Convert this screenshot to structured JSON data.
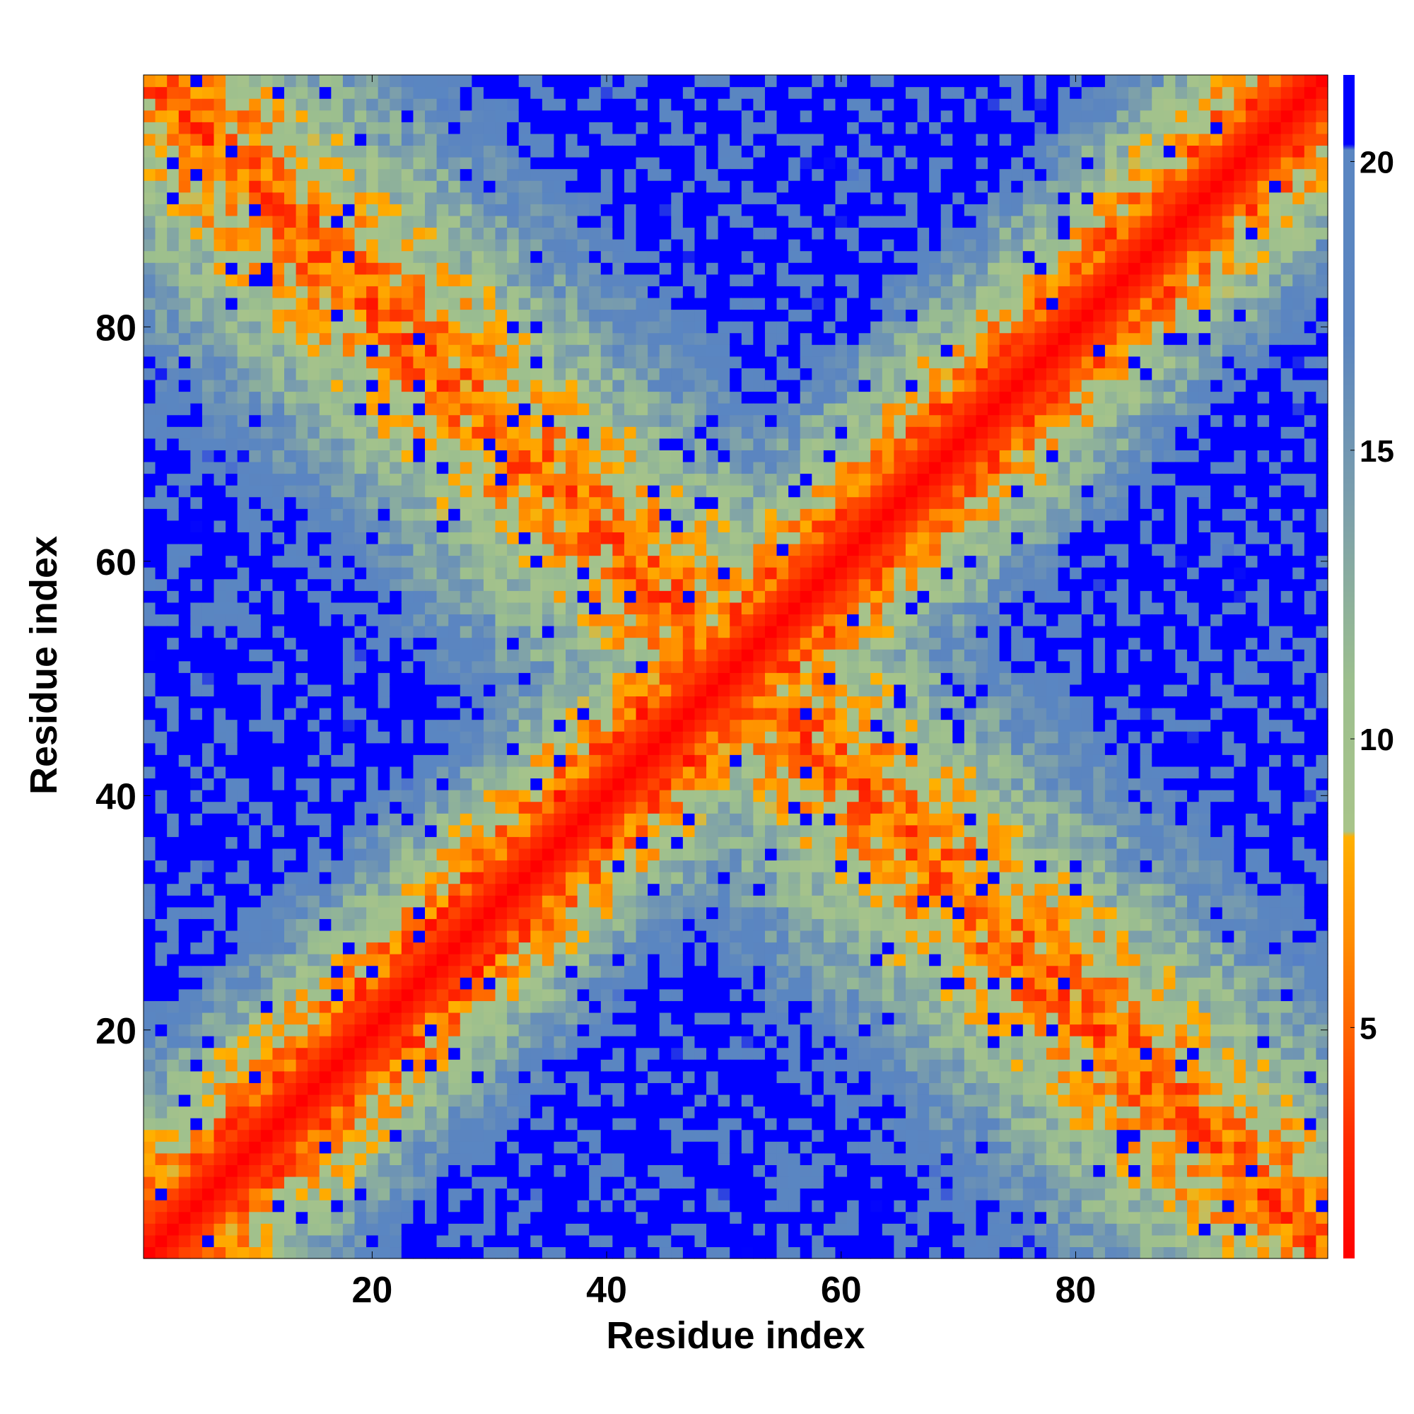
{
  "chart_data": {
    "type": "heatmap",
    "title": "",
    "xlabel": "Residue index",
    "ylabel": "Residue index",
    "n_residues": 101,
    "xlim": [
      1,
      101
    ],
    "ylim": [
      1,
      101
    ],
    "x_ticks": [
      20,
      40,
      60,
      80
    ],
    "y_ticks": [
      20,
      40,
      60,
      80
    ],
    "colorbar": {
      "ticks": [
        5,
        10,
        15,
        20
      ],
      "range": [
        1,
        21.5
      ],
      "stops": [
        {
          "value": 1.0,
          "color": "#ff0000"
        },
        {
          "value": 3.0,
          "color": "#ff2a00"
        },
        {
          "value": 5.0,
          "color": "#ff6600"
        },
        {
          "value": 6.5,
          "color": "#ff8c00"
        },
        {
          "value": 8.3,
          "color": "#ffb000"
        },
        {
          "value": 8.4,
          "color": "#a8c48a"
        },
        {
          "value": 11.0,
          "color": "#9cbf8e"
        },
        {
          "value": 14.0,
          "color": "#7c9fab"
        },
        {
          "value": 17.0,
          "color": "#5b85c0"
        },
        {
          "value": 20.2,
          "color": "#5a86c2"
        },
        {
          "value": 20.3,
          "color": "#0000ff"
        },
        {
          "value": 21.5,
          "color": "#0000ff"
        }
      ]
    },
    "structure": {
      "description": "Symmetric residue–residue distance map: diagonal band plus antidiagonal contact band",
      "diagonal_band": {
        "min": 1,
        "max": 21
      },
      "antidiagonal_band": {
        "center_sum": 102,
        "min": 5,
        "max": 21
      },
      "cutoff": 20.5
    }
  }
}
